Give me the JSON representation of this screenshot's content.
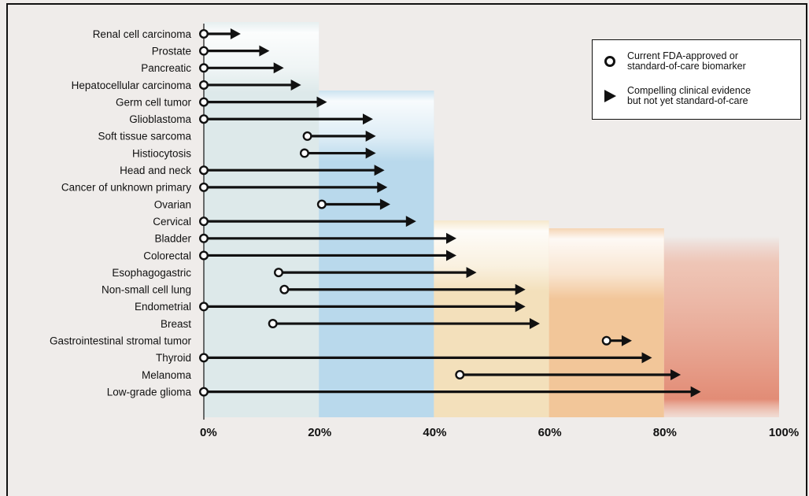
{
  "chart_data": {
    "type": "range-arrow",
    "categories": [
      "Renal cell carcinoma",
      "Prostate",
      "Pancreatic",
      "Hepatocellular carcinoma",
      "Germ cell tumor",
      "Glioblastoma",
      "Soft tissue sarcoma",
      "Histiocytosis",
      "Head and neck",
      "Cancer of unknown primary",
      "Ovarian",
      "Cervical",
      "Bladder",
      "Colorectal",
      "Esophagogastric",
      "Non-small cell lung",
      "Endometrial",
      "Breast",
      "Gastrointestinal stromal tumor",
      "Thyroid",
      "Melanoma",
      "Low-grade glioma"
    ],
    "series": [
      {
        "name": "Current FDA-approved or standard-of-care biomarker",
        "marker": "circle",
        "values": [
          0,
          0,
          0,
          0,
          0,
          0,
          18,
          17.5,
          0,
          0,
          20.5,
          0,
          0,
          0,
          13,
          14,
          0,
          12,
          70,
          0,
          44.5,
          0
        ]
      },
      {
        "name": "Compelling clinical evidence but not yet standard-of-care",
        "marker": "triangle",
        "values": [
          6,
          11,
          13.5,
          16.5,
          21,
          29,
          29.5,
          29.5,
          31,
          31.5,
          32,
          36.5,
          43.5,
          43.5,
          47,
          55.5,
          55.5,
          58,
          74,
          77.5,
          82.5,
          86
        ]
      }
    ],
    "xaxis": {
      "ticks": [
        "0%",
        "20%",
        "40%",
        "60%",
        "80%",
        "100%"
      ],
      "range": [
        0,
        100
      ]
    },
    "background_bands": [
      {
        "range": [
          0,
          20
        ],
        "color": "#dde9ea"
      },
      {
        "range": [
          20,
          40
        ],
        "color": "#b9d9ec"
      },
      {
        "range": [
          40,
          60
        ],
        "color": "#f3e0bb"
      },
      {
        "range": [
          60,
          80
        ],
        "color": "#f2c699"
      },
      {
        "range": [
          80,
          100
        ],
        "color": "#e9a08a"
      }
    ],
    "legend_position": "top-right",
    "grid": false
  },
  "legend": {
    "items": [
      {
        "marker": "circle",
        "label": "Current FDA-approved or\nstandard-of-care biomarker"
      },
      {
        "marker": "triangle",
        "label": "Compelling clinical evidence\nbut not yet standard-of-care"
      }
    ]
  },
  "colors": {
    "ink": "#111111",
    "background": "#efecea"
  }
}
